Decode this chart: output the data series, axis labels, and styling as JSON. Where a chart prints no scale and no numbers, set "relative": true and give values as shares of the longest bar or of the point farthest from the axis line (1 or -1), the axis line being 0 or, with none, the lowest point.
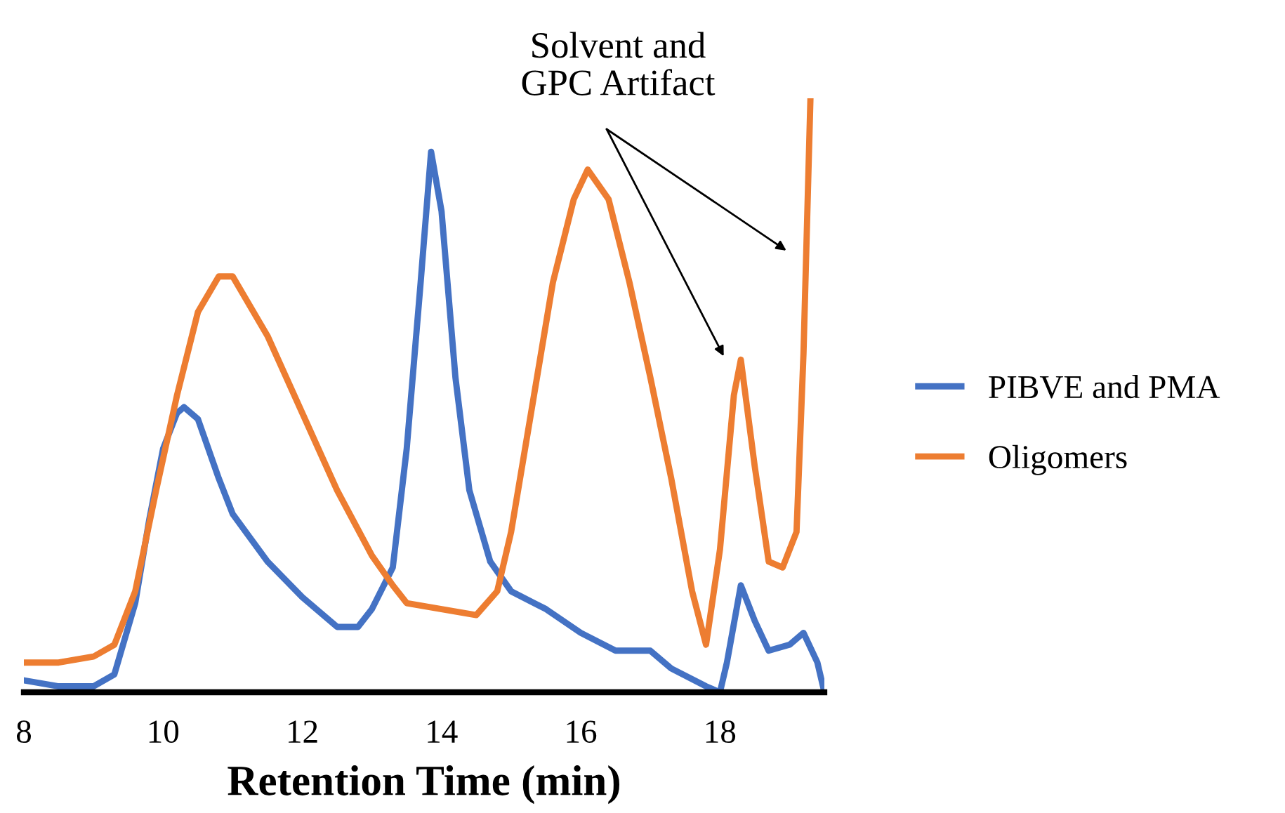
{
  "chart_data": {
    "type": "line",
    "relative": true,
    "xlabel": "Retention Time (min)",
    "xlim": [
      8,
      19.5
    ],
    "xticks": [
      8,
      10,
      12,
      14,
      16,
      18
    ],
    "legend": "right",
    "grid": false,
    "marker": "none",
    "line_style": "solid",
    "annotations": [
      "Solvent and\nGPC Artifact"
    ],
    "series": [
      {
        "name": "PIBVE and PMA",
        "color": "#4472c4",
        "x": [
          8,
          8.5,
          9,
          9.3,
          9.6,
          9.8,
          10,
          10.2,
          10.3,
          10.5,
          10.8,
          11,
          11.5,
          12,
          12.5,
          12.8,
          13,
          13.3,
          13.5,
          13.7,
          13.85,
          14,
          14.2,
          14.4,
          14.7,
          15,
          15.5,
          16,
          16.5,
          17,
          17.3,
          17.8,
          18,
          18.1,
          18.3,
          18.5,
          18.7,
          19,
          19.2,
          19.4,
          19.5
        ],
        "values": [
          0.02,
          0.01,
          0.01,
          0.03,
          0.15,
          0.29,
          0.41,
          0.47,
          0.48,
          0.46,
          0.36,
          0.3,
          0.22,
          0.16,
          0.11,
          0.11,
          0.14,
          0.21,
          0.41,
          0.69,
          0.91,
          0.81,
          0.53,
          0.34,
          0.22,
          0.17,
          0.14,
          0.1,
          0.07,
          0.07,
          0.04,
          0.01,
          0.0,
          0.05,
          0.18,
          0.12,
          0.07,
          0.08,
          0.1,
          0.05,
          0.0
        ]
      },
      {
        "name": "Oligomers",
        "color": "#ed7d31",
        "x": [
          8,
          8.5,
          9,
          9.3,
          9.6,
          9.9,
          10.2,
          10.5,
          10.8,
          11,
          11.5,
          12,
          12.5,
          13,
          13.3,
          13.5,
          14,
          14.5,
          14.8,
          15,
          15.3,
          15.6,
          15.9,
          16.1,
          16.4,
          16.7,
          17,
          17.3,
          17.6,
          17.8,
          18,
          18.2,
          18.3,
          18.5,
          18.7,
          18.9,
          19.1,
          19.2,
          19.3
        ],
        "values": [
          0.05,
          0.05,
          0.06,
          0.08,
          0.17,
          0.34,
          0.5,
          0.64,
          0.7,
          0.7,
          0.6,
          0.47,
          0.34,
          0.23,
          0.18,
          0.15,
          0.14,
          0.13,
          0.17,
          0.27,
          0.48,
          0.69,
          0.83,
          0.88,
          0.83,
          0.69,
          0.53,
          0.36,
          0.17,
          0.08,
          0.24,
          0.5,
          0.56,
          0.38,
          0.22,
          0.21,
          0.27,
          0.57,
          1.0
        ]
      }
    ]
  }
}
